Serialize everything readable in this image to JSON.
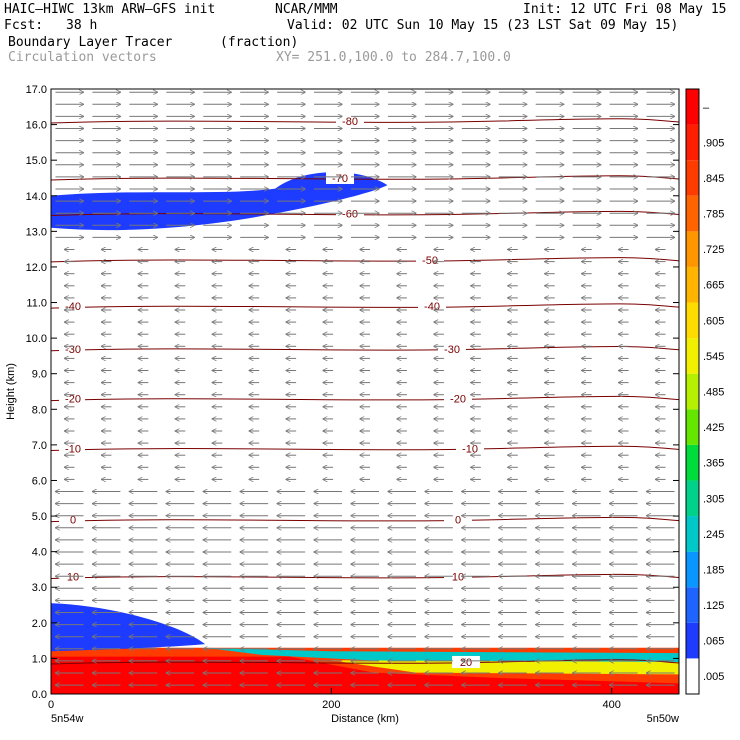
{
  "header": {
    "model": "HAIC–HIWC 13km ARW–GFS init",
    "org": "NCAR/MMM",
    "init": "Init: 12 UTC Fri 08 May 15",
    "fcst_label": "Fcst:",
    "fcst_value": "38 h",
    "valid": "Valid: 02 UTC Sun 10 May 15 (23 LST Sat 09 May 15)",
    "field": "Boundary Layer Tracer",
    "units": "(fraction)",
    "vectors": "Circulation vectors",
    "xy": "XY= 251.0,100.0 to 284.7,100.0"
  },
  "chart_data": {
    "type": "heatmap",
    "xlabel": "Distance (km)",
    "ylabel": "Height (km)",
    "xlim": [
      0,
      448
    ],
    "ylim": [
      0,
      17
    ],
    "x_ticks": [
      "0",
      "200",
      "400"
    ],
    "x_end_labels": [
      "5n54w",
      "5n50w"
    ],
    "y_ticks": [
      "0.0",
      "1.0",
      "2.0",
      "3.0",
      "4.0",
      "5.0",
      "6.0",
      "7.0",
      "8.0",
      "9.0",
      "10.0",
      "11.0",
      "12.0",
      "13.0",
      "14.0",
      "15.0",
      "16.0",
      "17.0"
    ],
    "colorbar_labels": [
      ".005",
      ".065",
      ".125",
      ".185",
      ".245",
      ".305",
      ".365",
      ".425",
      ".485",
      ".545",
      ".605",
      ".665",
      ".725",
      ".785",
      ".845",
      ".905",
      "–"
    ],
    "colorbar_colors": [
      "#ffffff",
      "#1e3cff",
      "#1e64ff",
      "#0a96ff",
      "#00c8c8",
      "#00d28c",
      "#00dc3c",
      "#64e600",
      "#b4f000",
      "#f0f000",
      "#ffdc00",
      "#ffb400",
      "#ff9600",
      "#ff6400",
      "#ff3c00",
      "#ff1e00",
      "#ff0000"
    ],
    "temperature_contours": [
      {
        "label": "-80",
        "km": 16.1
      },
      {
        "label": "-70",
        "km": 14.5
      },
      {
        "label": "-60",
        "km": 13.5
      },
      {
        "label": "-50",
        "km": 12.2
      },
      {
        "label": "-40",
        "km": 10.9
      },
      {
        "label": "-30",
        "km": 9.7
      },
      {
        "label": "-20",
        "km": 8.3
      },
      {
        "label": "-10",
        "km": 6.9
      },
      {
        "label": "0",
        "km": 4.9
      },
      {
        "label": "10",
        "km": 3.3
      },
      {
        "label": "20",
        "km": 0.9
      }
    ],
    "tracer_regions": [
      {
        "name": "upper-layer",
        "x_range": [
          0,
          240
        ],
        "z_range": [
          12.8,
          14.8
        ],
        "value": 0.065
      },
      {
        "name": "low-layer",
        "x_range": [
          0,
          110
        ],
        "z_range": [
          1.2,
          2.5
        ],
        "value": 0.065
      },
      {
        "name": "boundary-layer",
        "x_range": [
          0,
          448
        ],
        "z_range": [
          0,
          1.3
        ],
        "value": 0.905
      }
    ],
    "wind_vectors": [
      {
        "z_min": 12.8,
        "z_max": 17,
        "direction": "east",
        "strength": "strong"
      },
      {
        "z_min": 6.0,
        "z_max": 12.8,
        "direction": "west",
        "strength": "weak"
      },
      {
        "z_min": 0.2,
        "z_max": 6.0,
        "direction": "west",
        "strength": "strong"
      }
    ]
  }
}
